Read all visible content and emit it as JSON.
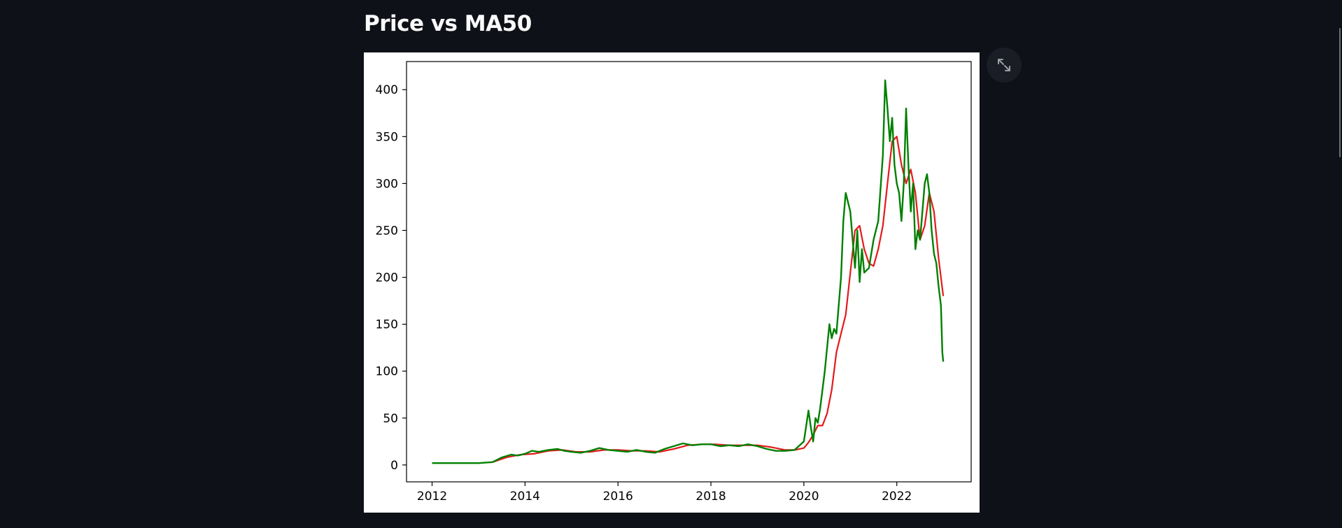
{
  "header": {
    "title": "Price vs MA50"
  },
  "toolbar": {
    "fullscreen_icon": "expand-arrows-icon"
  },
  "colors": {
    "background": "#0e1117",
    "price_line": "#008000",
    "ma50_line": "#e31a1c",
    "card": "#ffffff"
  },
  "chart_data": {
    "type": "line",
    "title": "",
    "xlabel": "",
    "ylabel": "",
    "xlim": [
      2011.45,
      2023.6
    ],
    "ylim": [
      -18,
      430
    ],
    "x_ticks": [
      2012,
      2014,
      2016,
      2018,
      2020,
      2022
    ],
    "x_tick_labels": [
      "2012",
      "2014",
      "2016",
      "2018",
      "2020",
      "2022"
    ],
    "y_ticks": [
      0,
      50,
      100,
      150,
      200,
      250,
      300,
      350,
      400
    ],
    "y_tick_labels": [
      "0",
      "50",
      "100",
      "150",
      "200",
      "250",
      "300",
      "350",
      "400"
    ],
    "grid": false,
    "legend": "none",
    "series": [
      {
        "color": "#008000",
        "x": [
          2012.0,
          2012.5,
          2013.0,
          2013.3,
          2013.5,
          2013.7,
          2013.85,
          2014.0,
          2014.15,
          2014.3,
          2014.5,
          2014.7,
          2014.85,
          2015.0,
          2015.2,
          2015.4,
          2015.6,
          2015.8,
          2016.0,
          2016.2,
          2016.4,
          2016.6,
          2016.8,
          2017.0,
          2017.2,
          2017.4,
          2017.6,
          2017.8,
          2018.0,
          2018.2,
          2018.4,
          2018.6,
          2018.8,
          2019.0,
          2019.2,
          2019.4,
          2019.6,
          2019.8,
          2020.0,
          2020.1,
          2020.15,
          2020.2,
          2020.25,
          2020.3,
          2020.35,
          2020.45,
          2020.55,
          2020.6,
          2020.65,
          2020.7,
          2020.8,
          2020.85,
          2020.9,
          2020.95,
          2021.0,
          2021.05,
          2021.1,
          2021.15,
          2021.2,
          2021.25,
          2021.3,
          2021.4,
          2021.5,
          2021.6,
          2021.7,
          2021.75,
          2021.8,
          2021.85,
          2021.9,
          2021.95,
          2022.0,
          2022.05,
          2022.1,
          2022.15,
          2022.2,
          2022.25,
          2022.3,
          2022.35,
          2022.4,
          2022.45,
          2022.5,
          2022.55,
          2022.6,
          2022.65,
          2022.7,
          2022.75,
          2022.8,
          2022.85,
          2022.9,
          2022.95,
          2022.98,
          2023.0
        ],
        "values": [
          2,
          2,
          2,
          3,
          8,
          11,
          10,
          12,
          15,
          14,
          16,
          17,
          15,
          14,
          13,
          15,
          18,
          16,
          15,
          14,
          16,
          14,
          13,
          17,
          20,
          23,
          21,
          22,
          22,
          20,
          21,
          20,
          22,
          20,
          17,
          15,
          15,
          16,
          25,
          58,
          40,
          25,
          50,
          45,
          60,
          100,
          150,
          135,
          145,
          140,
          200,
          260,
          290,
          280,
          270,
          240,
          210,
          250,
          195,
          230,
          205,
          210,
          240,
          260,
          330,
          410,
          380,
          345,
          370,
          320,
          300,
          290,
          260,
          300,
          380,
          320,
          270,
          300,
          230,
          250,
          240,
          270,
          300,
          310,
          290,
          250,
          225,
          215,
          190,
          170,
          120,
          110
        ]
      },
      {
        "color": "#e31a1c",
        "x": [
          2013.3,
          2013.6,
          2013.9,
          2014.2,
          2014.5,
          2014.8,
          2015.1,
          2015.4,
          2015.7,
          2016.0,
          2016.3,
          2016.6,
          2016.9,
          2017.2,
          2017.5,
          2017.8,
          2018.1,
          2018.4,
          2018.7,
          2019.0,
          2019.3,
          2019.6,
          2019.8,
          2020.0,
          2020.1,
          2020.2,
          2020.3,
          2020.4,
          2020.5,
          2020.6,
          2020.7,
          2020.8,
          2020.9,
          2021.0,
          2021.1,
          2021.2,
          2021.3,
          2021.4,
          2021.5,
          2021.6,
          2021.7,
          2021.8,
          2021.9,
          2022.0,
          2022.1,
          2022.2,
          2022.3,
          2022.4,
          2022.5,
          2022.6,
          2022.7,
          2022.8,
          2022.9,
          2023.0
        ],
        "values": [
          3,
          8,
          11,
          12,
          15,
          16,
          14,
          14,
          16,
          16,
          15,
          15,
          14,
          17,
          21,
          22,
          22,
          21,
          21,
          21,
          19,
          16,
          16,
          18,
          24,
          32,
          42,
          42,
          55,
          80,
          120,
          140,
          160,
          205,
          250,
          255,
          230,
          215,
          212,
          230,
          255,
          300,
          345,
          350,
          320,
          300,
          315,
          290,
          240,
          255,
          290,
          270,
          220,
          180
        ]
      }
    ]
  }
}
